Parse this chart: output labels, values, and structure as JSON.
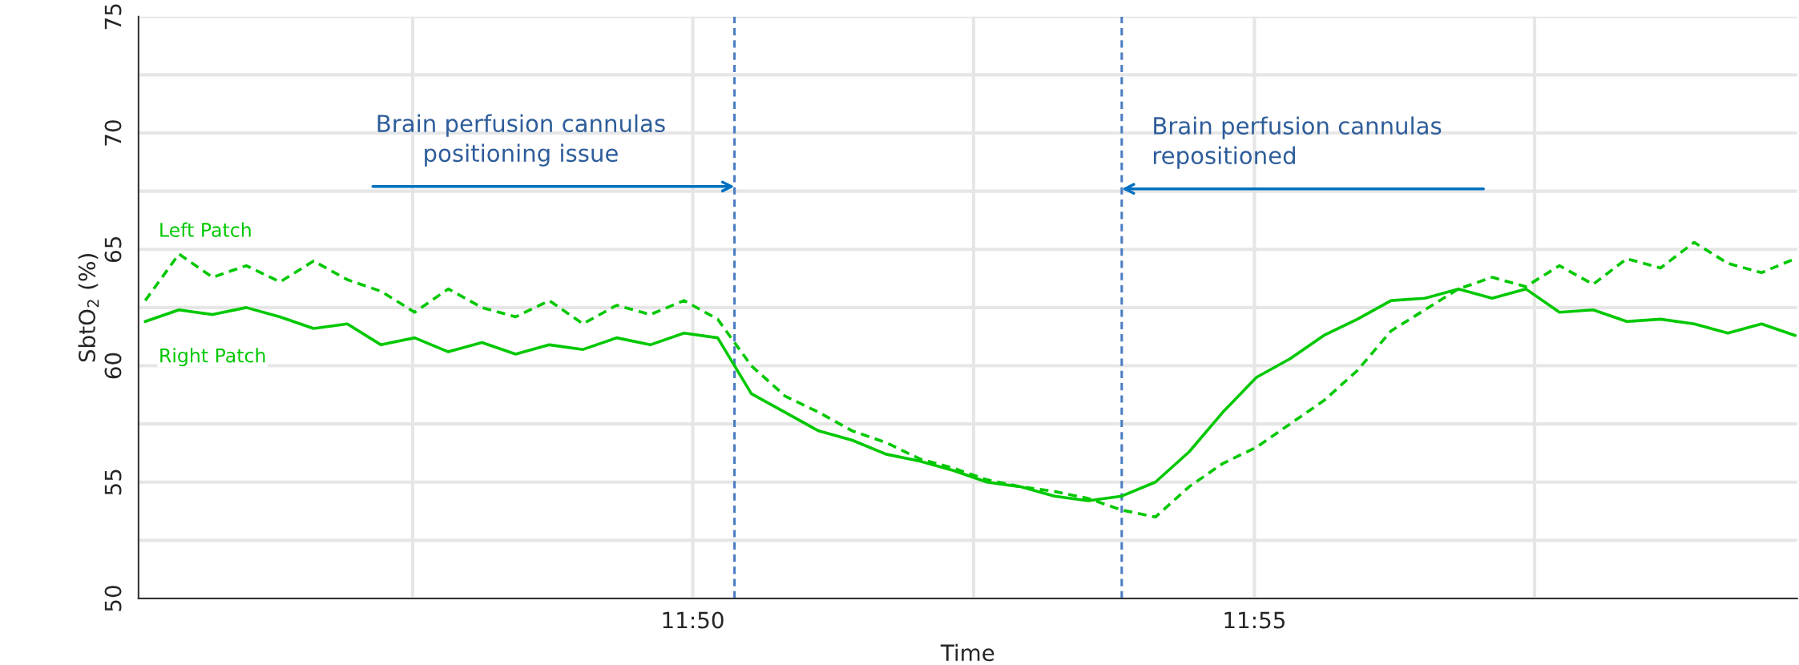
{
  "chart_data": {
    "type": "line",
    "xlabel": "Time",
    "ylabel": "SbtO$_{2}$ (%)",
    "x": [
      11.752,
      11.757,
      11.762,
      11.767,
      11.772,
      11.777,
      11.782,
      11.787,
      11.792,
      11.797,
      11.802,
      11.807,
      11.812,
      11.817,
      11.822,
      11.827,
      11.832,
      11.837,
      11.842,
      11.847,
      11.852,
      11.857,
      11.862,
      11.867,
      11.872,
      11.877,
      11.882,
      11.887,
      11.892,
      11.897,
      11.902,
      11.907,
      11.912,
      11.917,
      11.922,
      11.927,
      11.932,
      11.937,
      11.942,
      11.947,
      11.952,
      11.957,
      11.962,
      11.967,
      11.972,
      11.977,
      11.982,
      11.987,
      11.992,
      11.997
    ],
    "series": [
      {
        "name": "Left Patch",
        "color": "#00c800",
        "line_style": "dashed",
        "values": [
          62.8,
          64.8,
          63.8,
          64.3,
          63.6,
          64.5,
          63.7,
          63.2,
          62.3,
          63.3,
          62.5,
          62.1,
          62.8,
          61.8,
          62.6,
          62.2,
          62.8,
          62.0,
          60.0,
          58.7,
          58.0,
          57.2,
          56.7,
          56.0,
          55.6,
          55.1,
          54.8,
          54.6,
          54.3,
          53.8,
          53.5,
          54.8,
          55.8,
          56.5,
          57.5,
          58.5,
          59.8,
          61.5,
          62.4,
          63.3,
          63.8,
          63.4,
          64.3,
          63.5,
          64.6,
          64.2,
          65.3,
          64.4,
          64.0,
          64.6
        ]
      },
      {
        "name": "Right Patch",
        "color": "#00c800",
        "line_style": "solid",
        "values": [
          61.9,
          62.4,
          62.2,
          62.5,
          62.1,
          61.6,
          61.8,
          60.9,
          61.2,
          60.6,
          61.0,
          60.5,
          60.9,
          60.7,
          61.2,
          60.9,
          61.4,
          61.2,
          58.8,
          58.0,
          57.2,
          56.8,
          56.2,
          55.9,
          55.5,
          55.0,
          54.8,
          54.4,
          54.2,
          54.4,
          55.0,
          56.3,
          58.0,
          59.5,
          60.3,
          61.3,
          62.0,
          62.8,
          62.9,
          63.3,
          62.9,
          63.3,
          62.3,
          62.4,
          61.9,
          62.0,
          61.8,
          61.4,
          61.8,
          61.3
        ]
      }
    ],
    "xlim": [
      11.751,
      11.9973
    ],
    "xticks": [
      {
        "value": 11.7917,
        "label": null
      },
      {
        "value": 11.8333,
        "label": "11:50"
      },
      {
        "value": 11.875,
        "label": null
      },
      {
        "value": 11.9167,
        "label": "11:55"
      },
      {
        "value": 11.9583,
        "label": null
      }
    ],
    "ylim": [
      50,
      75
    ],
    "yticks": [
      50,
      {
        "value": 52.5,
        "label": null
      },
      55,
      {
        "value": 57.5,
        "label": null
      },
      60,
      {
        "value": 62.5,
        "label": null
      },
      65,
      {
        "value": 67.5,
        "label": null
      },
      70,
      {
        "value": 72.5,
        "label": null
      },
      75
    ],
    "grid": true,
    "ref_lines": [
      {
        "axis": "x",
        "value": 11.8395,
        "color": "#4a7cc0",
        "line_style": "dashed"
      },
      {
        "axis": "x",
        "value": 11.897,
        "color": "#4a7cc0",
        "line_style": "dashed"
      }
    ],
    "annotations": [
      {
        "text": "Brain perfusion cannulas\npositioning issue",
        "x": 11.8395,
        "y": 67.7
      },
      {
        "text": "Brain perfusion cannulas\nrepositioned",
        "x": 11.897,
        "y": 67.6
      }
    ]
  }
}
